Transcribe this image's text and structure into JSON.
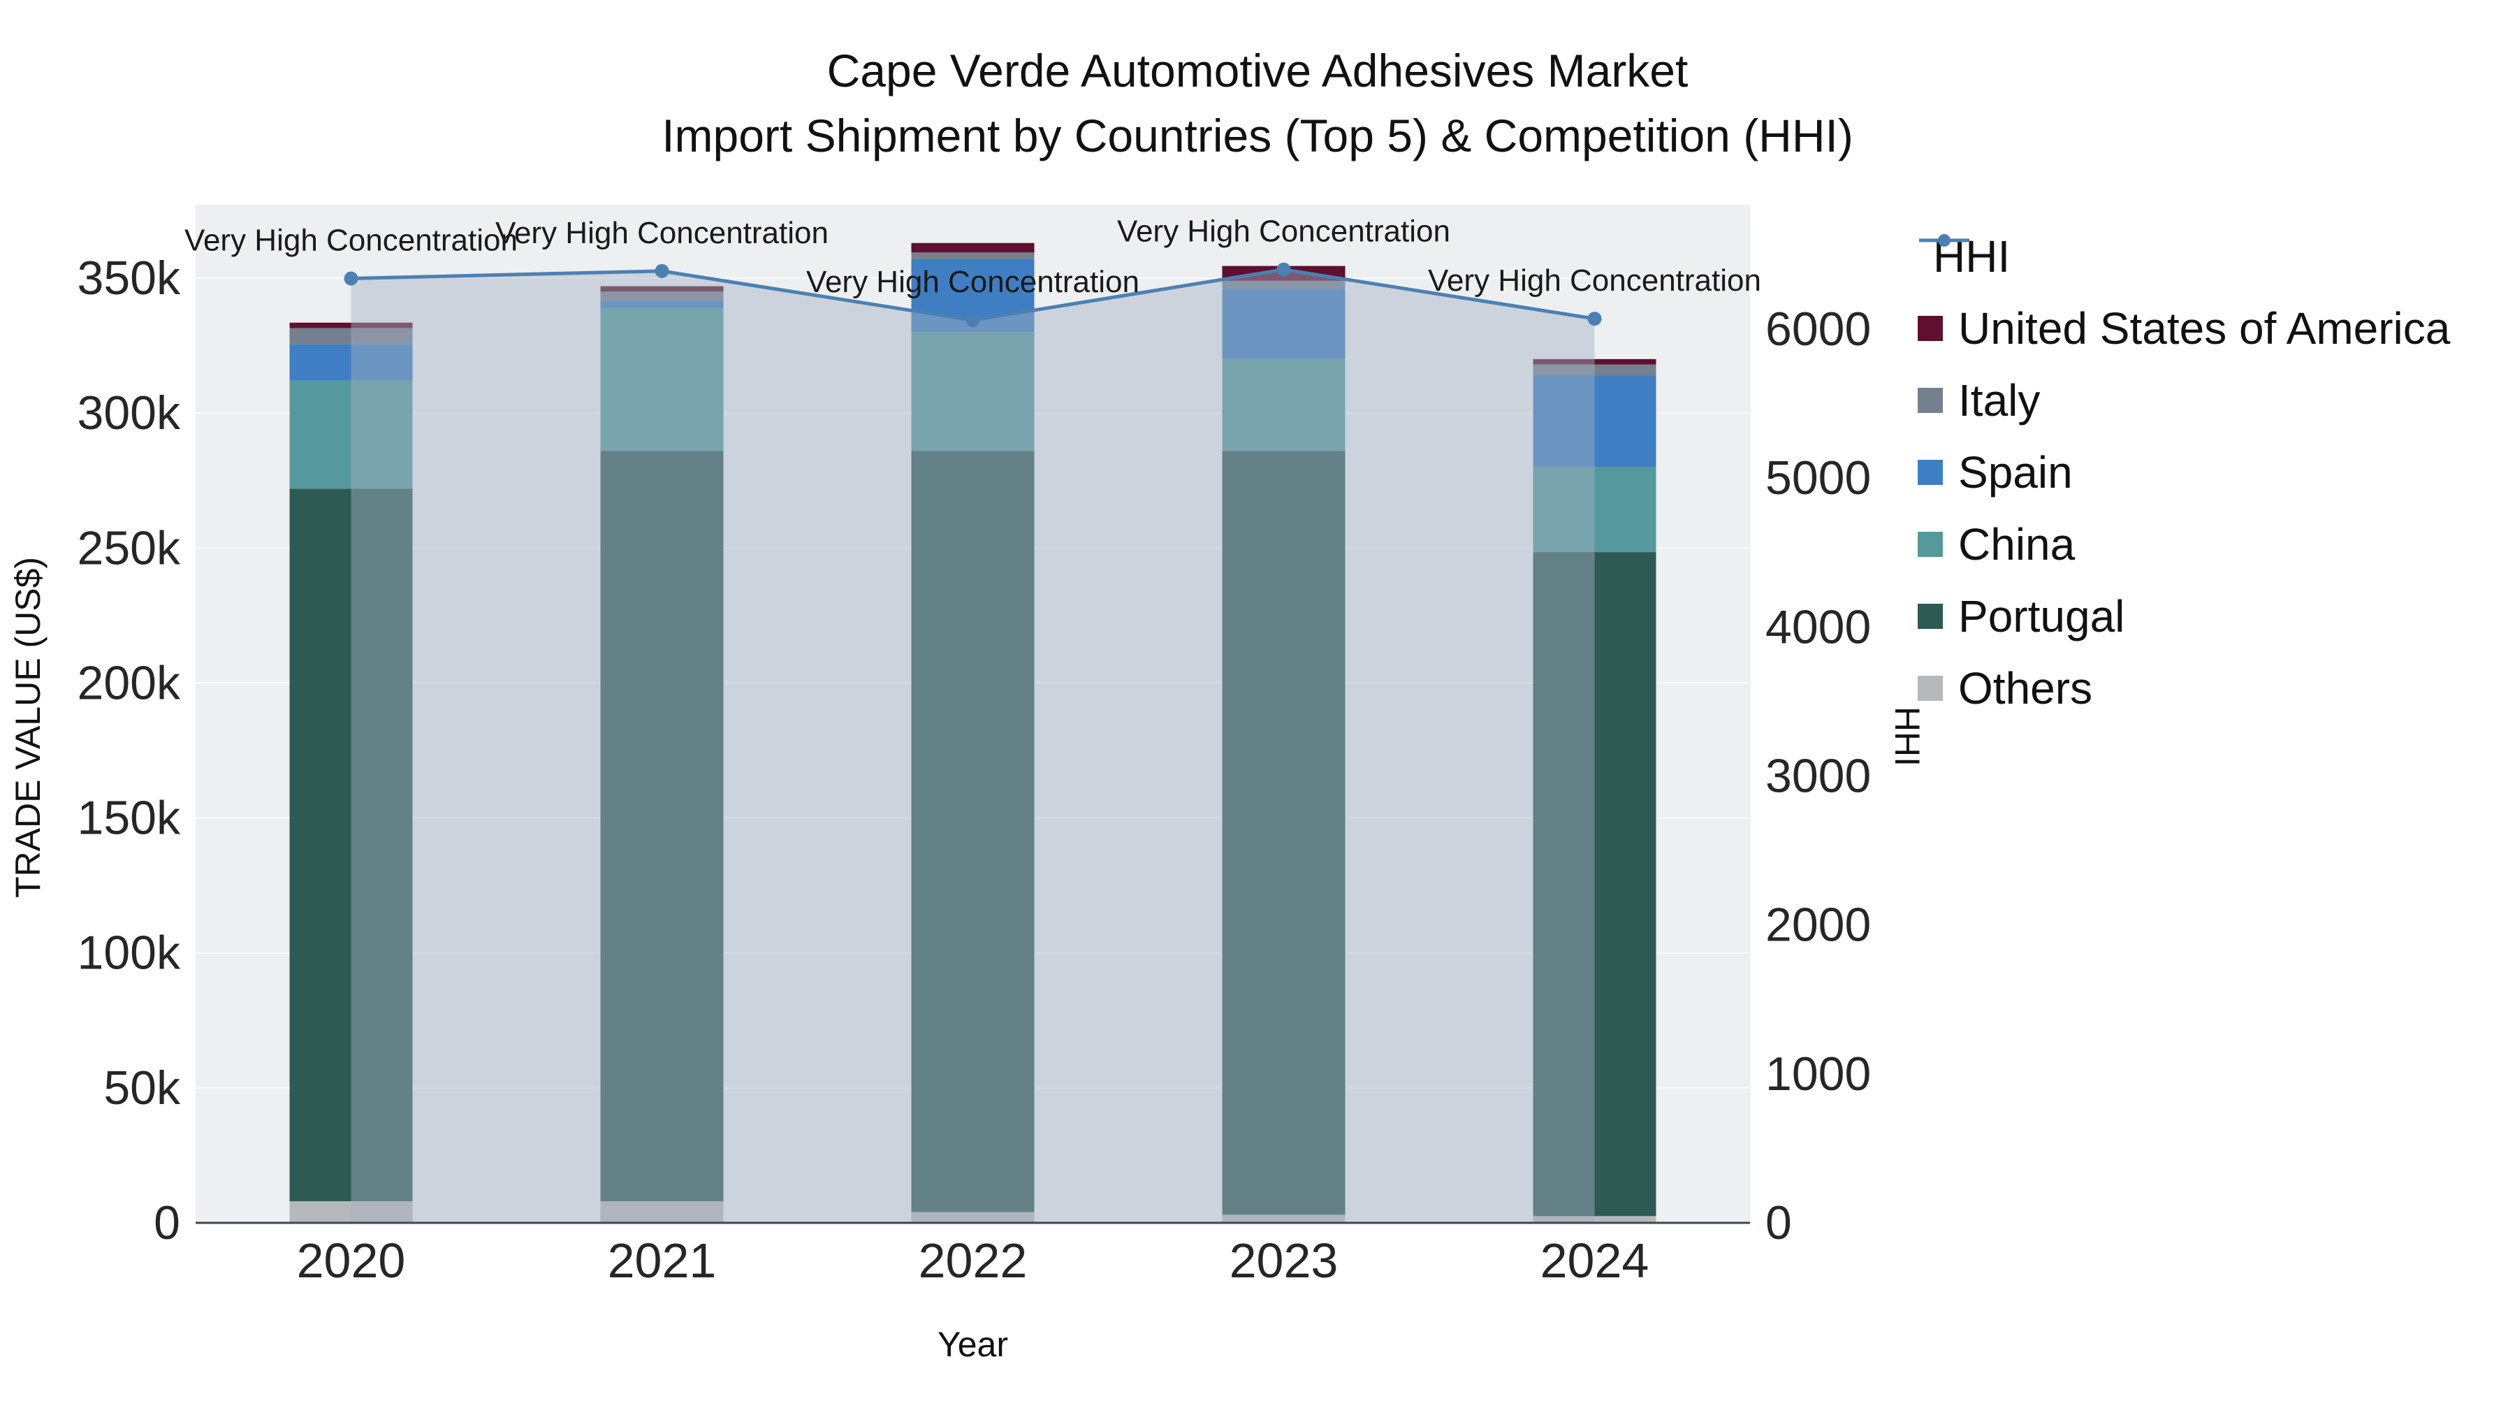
{
  "title": {
    "line1": "Cape Verde Automotive Adhesives Market",
    "line2": "Import Shipment by Countries (Top 5) & Competition (HHI)"
  },
  "axes": {
    "y_left_title": "TRADE VALUE (US$)",
    "y_right_title": "HHI",
    "x_title": "Year"
  },
  "chart_data": {
    "type": "bar",
    "subtype": "stacked-bars-with-line-overlay",
    "title": "Cape Verde Automotive Adhesives Market Import Shipment by Countries (Top 5) & Competition (HHI)",
    "xlabel": "Year",
    "ylabel_left": "TRADE VALUE (US$)",
    "ylabel_right": "HHI",
    "categories": [
      "2020",
      "2021",
      "2022",
      "2023",
      "2024"
    ],
    "series": [
      {
        "name": "Others",
        "color": "#b6b9bc",
        "values": [
          8000,
          8000,
          4000,
          3000,
          2500
        ]
      },
      {
        "name": "Portugal",
        "color": "#2e5a54",
        "values": [
          264000,
          278000,
          282000,
          283000,
          246000
        ]
      },
      {
        "name": "China",
        "color": "#56999c",
        "values": [
          40000,
          53000,
          44000,
          34000,
          31500
        ]
      },
      {
        "name": "Spain",
        "color": "#3f7ec2",
        "values": [
          13500,
          2500,
          27000,
          26000,
          34000
        ]
      },
      {
        "name": "Italy",
        "color": "#75808f",
        "values": [
          6000,
          3500,
          2500,
          3000,
          4000
        ]
      },
      {
        "name": "United States of America",
        "color": "#5e102e",
        "values": [
          2000,
          2000,
          3500,
          5500,
          2000
        ]
      }
    ],
    "line_series": {
      "name": "HHI",
      "color": "#4c80b2",
      "fill": "rgba(164,178,196,0.45)",
      "values": [
        6340,
        6390,
        6060,
        6400,
        6070
      ]
    },
    "annotations": [
      "Very High Concentration",
      "Very High Concentration",
      "Very High Concentration",
      "Very High Concentration",
      "Very High Concentration"
    ],
    "y_left": {
      "min": 0,
      "max": 376000,
      "ticks": [
        0,
        50000,
        100000,
        150000,
        200000,
        250000,
        300000,
        350000
      ],
      "labels": [
        "0",
        "50k",
        "100k",
        "150k",
        "200k",
        "250k",
        "300k",
        "350k"
      ]
    },
    "y_right": {
      "min": 0,
      "max": 6830,
      "ticks": [
        0,
        1000,
        2000,
        3000,
        4000,
        5000,
        6000
      ],
      "labels": [
        "0",
        "1000",
        "2000",
        "3000",
        "4000",
        "5000",
        "6000"
      ]
    },
    "legend": [
      {
        "label": "HHI",
        "type": "line",
        "color": "#4c80b2"
      },
      {
        "label": "United States of America",
        "type": "box",
        "color": "#5e102e"
      },
      {
        "label": "Italy",
        "type": "box",
        "color": "#75808f"
      },
      {
        "label": "Spain",
        "type": "box",
        "color": "#3f7ec2"
      },
      {
        "label": "China",
        "type": "box",
        "color": "#56999c"
      },
      {
        "label": "Portugal",
        "type": "box",
        "color": "#2e5a54"
      },
      {
        "label": "Others",
        "type": "box",
        "color": "#b6b9bc"
      }
    ],
    "grid": true,
    "legend_position": "right"
  }
}
